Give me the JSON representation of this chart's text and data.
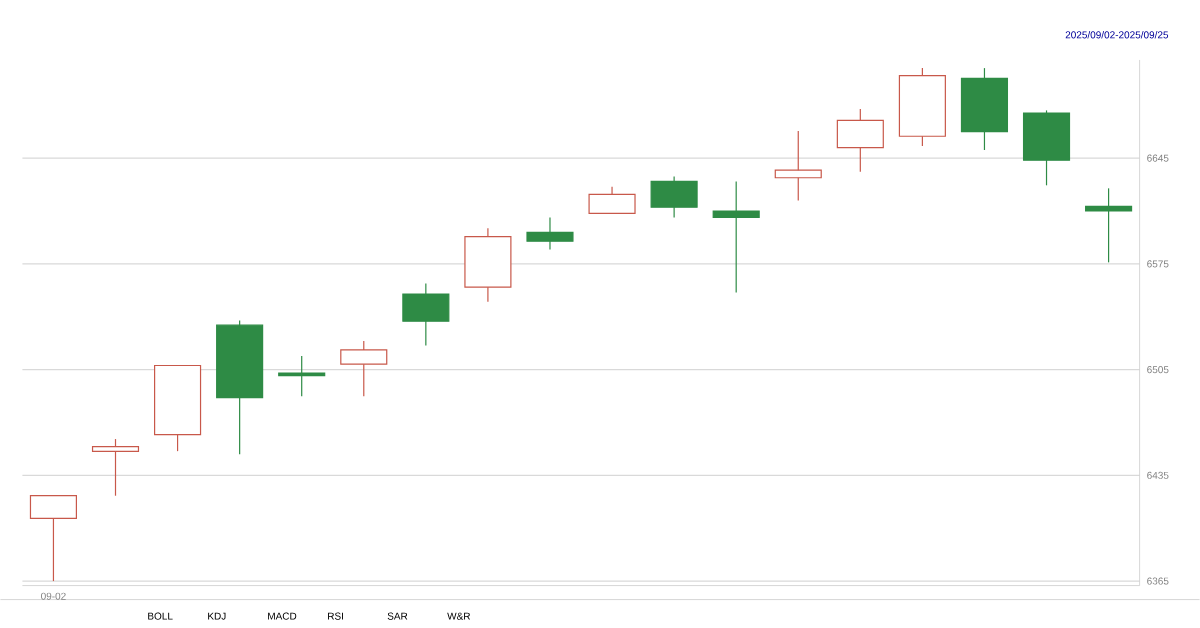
{
  "chart_data": {
    "type": "candlestick",
    "categories": [
      "09-02",
      null,
      null,
      null,
      null,
      null,
      null,
      null,
      null,
      null,
      null,
      null,
      null,
      null,
      null,
      null,
      null,
      null
    ],
    "ohlc": [
      [
        6406.5,
        6421.5,
        6365,
        6421.5
      ],
      [
        6450.8,
        6459,
        6421.5,
        6454
      ],
      [
        6462,
        6507.7,
        6451,
        6507.7
      ],
      [
        6534.4,
        6537.5,
        6449,
        6486.5
      ],
      [
        6502.7,
        6514,
        6487.4,
        6501
      ],
      [
        6508.6,
        6524,
        6487.4,
        6518
      ],
      [
        6555,
        6562,
        6521,
        6537
      ],
      [
        6559.6,
        6598.5,
        6550,
        6593
      ],
      [
        6595.8,
        6605.7,
        6584.5,
        6590
      ],
      [
        6608.4,
        6626,
        6608.4,
        6621
      ],
      [
        6629.6,
        6632.8,
        6605.7,
        6612.5
      ],
      [
        6610,
        6629.6,
        6556,
        6605.7
      ],
      [
        6632,
        6663,
        6617,
        6637
      ],
      [
        6652,
        6677.5,
        6636,
        6670
      ],
      [
        6659.5,
        6704.6,
        6653,
        6699.6
      ],
      [
        6697.8,
        6704.6,
        6650.4,
        6662.6
      ],
      [
        6674.8,
        6676.6,
        6627,
        6643.6
      ],
      [
        6613,
        6625,
        6576,
        6610
      ]
    ],
    "colors": [
      "#c8584a",
      "#c8584a",
      "#c8584a",
      "#2e8b45",
      "#2e8b45",
      "#c8584a",
      "#2e8b45",
      "#c8584a",
      "#2e8b45",
      "#c8584a",
      "#2e8b45",
      "#2e8b45",
      "#c8584a",
      "#c8584a",
      "#c8584a",
      "#2e8b45",
      "#2e8b45",
      "#2e8b45"
    ],
    "ylim": [
      6362,
      6710
    ],
    "yticks": [
      6365,
      6435,
      6505,
      6575,
      6645
    ],
    "grid": "y",
    "annotations": [
      "2025/09/02-2025/09/25",
      "BOLL",
      "KDJ",
      "MACD",
      "RSI",
      "SAR",
      "W&R"
    ]
  }
}
